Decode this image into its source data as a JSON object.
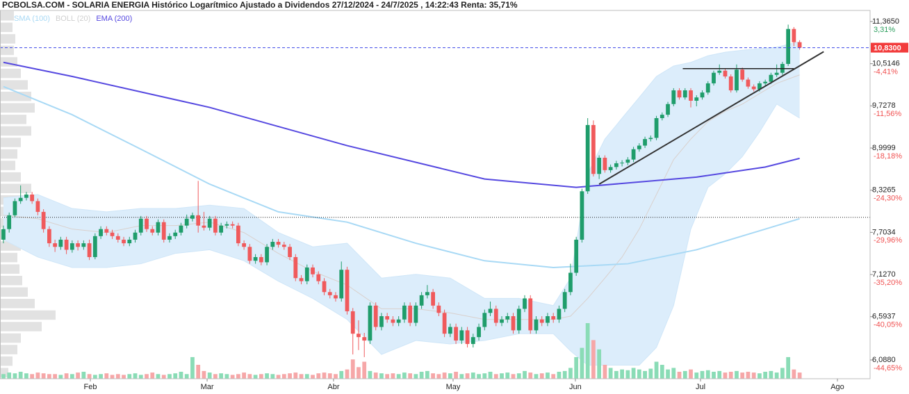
{
  "chart_data": {
    "type": "candlestick",
    "title": "PCBOLSA.COM - SOLARIA ENERGIA Histórico Logarítmico Ajustado a Dividendos 27/12/2024 - 24/7/2025 , 14:22:43 Renta: 35,71%",
    "open": [
      7.6,
      7.75,
      7.95,
      8.16,
      8.21,
      8.26,
      8.16,
      8.0,
      7.75,
      7.55,
      7.5,
      7.6,
      7.46,
      7.55,
      7.5,
      7.55,
      7.36,
      7.65,
      7.75,
      7.7,
      7.65,
      7.6,
      7.55,
      7.6,
      7.7,
      7.9,
      7.75,
      7.7,
      7.85,
      7.6,
      7.65,
      7.7,
      7.8,
      7.9,
      7.95,
      7.8,
      7.77,
      7.9,
      7.7,
      7.8,
      7.82,
      7.8,
      7.55,
      7.5,
      7.31,
      7.36,
      7.29,
      7.5,
      7.57,
      7.53,
      7.5,
      7.36,
      7.08,
      7.04,
      7.22,
      7.13,
      7.04,
      6.9,
      6.86,
      6.82,
      7.19,
      6.66,
      6.39,
      6.35,
      6.31,
      6.73,
      6.47,
      6.6,
      6.56,
      6.52,
      6.56,
      6.73,
      6.52,
      6.73,
      6.86,
      6.9,
      6.73,
      6.64,
      6.39,
      6.47,
      6.31,
      6.43,
      6.27,
      6.35,
      6.47,
      6.64,
      6.69,
      6.52,
      6.56,
      6.6,
      6.43,
      6.69,
      6.82,
      6.43,
      6.56,
      6.52,
      6.6,
      6.56,
      6.69,
      6.9,
      7.15,
      7.6,
      8.31,
      9.39,
      8.58,
      8.84,
      8.64,
      8.69,
      8.75,
      8.76,
      8.81,
      8.98,
      9.04,
      9.15,
      9.17,
      9.51,
      9.57,
      9.76,
      10.01,
      9.88,
      10.01,
      9.82,
      9.88,
      9.97,
      10.14,
      10.34,
      10.38,
      10.27,
      10.01,
      10.4,
      10.21,
      10.08,
      10.03,
      10.14,
      10.17,
      10.3,
      10.34,
      10.51,
      11.21,
      10.94
    ],
    "high": [
      7.8,
      7.99,
      8.2,
      8.4,
      8.3,
      8.3,
      8.2,
      8.04,
      7.79,
      7.6,
      7.64,
      7.64,
      7.59,
      7.59,
      7.59,
      7.6,
      7.69,
      7.79,
      7.79,
      7.74,
      7.69,
      7.64,
      7.64,
      7.74,
      7.94,
      7.94,
      7.79,
      7.89,
      7.89,
      7.69,
      7.74,
      7.84,
      7.96,
      7.99,
      8.47,
      8.0,
      7.94,
      7.94,
      7.84,
      7.86,
      7.86,
      7.84,
      7.59,
      7.54,
      7.4,
      7.4,
      7.54,
      7.61,
      7.61,
      7.57,
      7.54,
      7.4,
      7.12,
      7.26,
      7.26,
      7.17,
      7.08,
      6.94,
      6.9,
      7.3,
      7.23,
      6.7,
      6.55,
      6.4,
      6.77,
      6.77,
      6.64,
      6.64,
      6.6,
      6.6,
      6.77,
      6.77,
      6.77,
      6.9,
      6.99,
      6.94,
      6.77,
      6.68,
      6.51,
      6.51,
      6.47,
      6.47,
      6.39,
      6.51,
      6.68,
      6.78,
      6.73,
      6.6,
      6.64,
      6.64,
      6.73,
      6.86,
      6.86,
      6.6,
      6.6,
      6.64,
      6.64,
      6.73,
      6.94,
      7.27,
      7.64,
      8.35,
      9.51,
      9.47,
      8.88,
      8.88,
      8.73,
      8.79,
      8.8,
      8.85,
      9.02,
      9.08,
      9.19,
      9.21,
      9.55,
      9.61,
      9.8,
      10.05,
      10.05,
      10.05,
      10.05,
      9.92,
      10.01,
      10.18,
      10.38,
      10.5,
      10.42,
      10.31,
      10.5,
      10.44,
      10.25,
      10.12,
      10.18,
      10.21,
      10.34,
      10.5,
      10.55,
      11.3,
      11.25,
      10.98
    ],
    "low": [
      7.55,
      7.7,
      7.92,
      8.12,
      8.17,
      8.12,
      7.95,
      7.7,
      7.5,
      7.43,
      7.46,
      7.4,
      7.42,
      7.45,
      7.46,
      7.32,
      7.33,
      7.61,
      7.66,
      7.61,
      7.56,
      7.51,
      7.51,
      7.56,
      7.66,
      7.71,
      7.66,
      7.66,
      7.56,
      7.56,
      7.61,
      7.66,
      7.76,
      7.86,
      7.7,
      7.73,
      7.73,
      7.66,
      7.66,
      7.76,
      7.76,
      7.51,
      7.46,
      7.27,
      7.27,
      7.25,
      7.25,
      7.46,
      7.49,
      7.46,
      7.32,
      7.04,
      7.0,
      7.0,
      7.09,
      7.0,
      6.86,
      6.82,
      6.78,
      6.78,
      6.62,
      6.15,
      6.2,
      6.12,
      6.27,
      6.43,
      6.43,
      6.52,
      6.48,
      6.48,
      6.52,
      6.48,
      6.48,
      6.69,
      6.82,
      6.69,
      6.6,
      6.35,
      6.35,
      6.27,
      6.27,
      6.23,
      6.23,
      6.31,
      6.43,
      6.6,
      6.48,
      6.48,
      6.52,
      6.39,
      6.39,
      6.65,
      6.39,
      6.39,
      6.48,
      6.48,
      6.52,
      6.52,
      6.65,
      6.86,
      7.11,
      7.56,
      8.27,
      8.54,
      8.5,
      8.6,
      8.6,
      8.65,
      8.7,
      8.72,
      8.77,
      8.94,
      9.0,
      9.11,
      9.13,
      9.47,
      9.53,
      9.72,
      9.84,
      9.84,
      9.7,
      9.72,
      9.84,
      9.93,
      10.1,
      10.3,
      10.23,
      9.97,
      9.97,
      10.17,
      10.04,
      9.99,
      9.99,
      10.1,
      10.13,
      10.26,
      10.3,
      10.47,
      10.86,
      10.79
    ],
    "close": [
      7.75,
      7.95,
      8.16,
      8.21,
      8.26,
      8.16,
      8.0,
      7.75,
      7.55,
      7.5,
      7.6,
      7.46,
      7.55,
      7.5,
      7.55,
      7.36,
      7.65,
      7.75,
      7.7,
      7.65,
      7.6,
      7.55,
      7.6,
      7.7,
      7.9,
      7.75,
      7.7,
      7.85,
      7.6,
      7.65,
      7.7,
      7.8,
      7.9,
      7.95,
      7.8,
      7.77,
      7.9,
      7.7,
      7.8,
      7.82,
      7.8,
      7.55,
      7.5,
      7.31,
      7.36,
      7.29,
      7.5,
      7.57,
      7.53,
      7.5,
      7.36,
      7.08,
      7.04,
      7.22,
      7.13,
      7.04,
      6.9,
      6.86,
      6.82,
      7.19,
      6.66,
      6.39,
      6.35,
      6.31,
      6.73,
      6.47,
      6.6,
      6.56,
      6.52,
      6.56,
      6.73,
      6.52,
      6.73,
      6.86,
      6.9,
      6.73,
      6.64,
      6.39,
      6.47,
      6.31,
      6.43,
      6.27,
      6.35,
      6.47,
      6.64,
      6.69,
      6.52,
      6.56,
      6.6,
      6.43,
      6.69,
      6.82,
      6.43,
      6.56,
      6.52,
      6.6,
      6.56,
      6.69,
      6.9,
      7.15,
      7.6,
      8.31,
      9.39,
      8.58,
      8.84,
      8.64,
      8.69,
      8.75,
      8.76,
      8.81,
      8.98,
      9.04,
      9.15,
      9.17,
      9.51,
      9.57,
      9.76,
      10.01,
      9.88,
      10.01,
      9.82,
      9.88,
      9.97,
      10.14,
      10.34,
      10.38,
      10.27,
      10.01,
      10.4,
      10.21,
      10.08,
      10.03,
      10.14,
      10.17,
      10.3,
      10.34,
      10.51,
      11.21,
      10.94,
      10.83
    ],
    "volume": [
      6,
      8,
      7,
      9,
      7,
      6,
      8,
      7,
      6,
      6,
      5,
      7,
      6,
      8,
      9,
      6,
      5,
      6,
      7,
      5,
      6,
      5,
      6,
      7,
      5,
      6,
      8,
      6,
      5,
      6,
      7,
      9,
      6,
      28,
      18,
      10,
      8,
      6,
      7,
      6,
      5,
      6,
      8,
      6,
      5,
      6,
      7,
      6,
      5,
      6,
      7,
      8,
      6,
      6,
      5,
      7,
      8,
      7,
      6,
      10,
      12,
      25,
      15,
      22,
      10,
      8,
      7,
      6,
      7,
      6,
      8,
      7,
      6,
      9,
      10,
      7,
      6,
      8,
      7,
      9,
      6,
      7,
      8,
      6,
      7,
      9,
      6,
      7,
      8,
      6,
      7,
      10,
      8,
      6,
      7,
      8,
      6,
      9,
      10,
      14,
      28,
      40,
      72,
      50,
      38,
      18,
      14,
      10,
      12,
      11,
      14,
      12,
      10,
      13,
      22,
      18,
      12,
      14,
      9,
      10,
      12,
      8,
      10,
      11,
      9,
      10,
      8,
      9,
      10,
      8,
      9,
      8,
      7,
      9,
      10,
      8,
      14,
      28,
      12,
      8
    ],
    "up_color": "#1f9d6b",
    "down_color": "#f05a5c",
    "volume_up_color": "#8adcb6",
    "volume_down_color": "#f6a7a8",
    "volume_profile": [
      20,
      18,
      22,
      20,
      25,
      30,
      40,
      45,
      50,
      38,
      45,
      30,
      25,
      22,
      30,
      45,
      55,
      60,
      40,
      35,
      30,
      25,
      28,
      32,
      40,
      50,
      80,
      60,
      30,
      25,
      18,
      12
    ],
    "volume_profile_color": "#e2e2e2",
    "indicators": [
      {
        "name": "SMA (100)",
        "color": "#a8d9f5",
        "x": [
          0,
          12,
          24,
          36,
          48,
          60,
          72,
          84,
          96,
          109,
          121,
          133,
          139
        ],
        "values": [
          10.08,
          9.57,
          8.98,
          8.42,
          8.0,
          7.85,
          7.55,
          7.31,
          7.22,
          7.27,
          7.46,
          7.75,
          7.9
        ]
      },
      {
        "name": "EMA (200)",
        "color": "#5548e0",
        "x": [
          0,
          12,
          36,
          60,
          84,
          100,
          121,
          133,
          139
        ],
        "values": [
          10.54,
          10.27,
          9.7,
          9.04,
          8.5,
          8.37,
          8.53,
          8.69,
          8.83
        ]
      }
    ],
    "bollinger": {
      "name": "BOLL (20)",
      "color": "#dcedfb",
      "line_color": "#d9d0cc",
      "legend_color": "#cfcfcf",
      "x": [
        0,
        6,
        12,
        18,
        24,
        30,
        36,
        42,
        48,
        54,
        60,
        66,
        72,
        78,
        84,
        90,
        96,
        99,
        102,
        105,
        108,
        111,
        114,
        117,
        120,
        123,
        126,
        129,
        132,
        135,
        139
      ],
      "upper": [
        8.21,
        8.26,
        8.05,
        8.0,
        8.05,
        8.05,
        8.1,
        8.05,
        7.7,
        7.5,
        7.55,
        7.08,
        7.13,
        7.08,
        6.82,
        6.82,
        6.73,
        7.08,
        8.58,
        9.15,
        9.51,
        9.88,
        10.27,
        10.47,
        10.54,
        10.67,
        10.74,
        10.78,
        10.81,
        10.84,
        10.95
      ],
      "middle": [
        7.95,
        7.9,
        7.75,
        7.7,
        7.8,
        7.8,
        7.85,
        7.7,
        7.41,
        7.17,
        6.99,
        6.69,
        6.69,
        6.64,
        6.56,
        6.56,
        6.56,
        6.6,
        6.82,
        7.08,
        7.36,
        7.75,
        8.26,
        8.81,
        9.15,
        9.45,
        9.63,
        9.76,
        9.95,
        10.14,
        10.3
      ],
      "lower": [
        7.6,
        7.36,
        7.22,
        7.22,
        7.27,
        7.41,
        7.46,
        7.31,
        7.04,
        6.82,
        6.56,
        6.15,
        6.31,
        6.27,
        6.31,
        6.39,
        6.39,
        6.19,
        6.03,
        6.03,
        6.03,
        6.03,
        6.23,
        6.73,
        7.75,
        8.37,
        8.58,
        8.86,
        9.27,
        9.76,
        9.51
      ]
    },
    "log_scale": true,
    "xlim": [
      -0.6,
      151.3
    ],
    "xticks": [
      {
        "value": 15.17,
        "label": "Feb"
      },
      {
        "value": 35.56,
        "label": "Mar"
      },
      {
        "value": 57.63,
        "label": "Abr"
      },
      {
        "value": 78.5,
        "label": "May"
      },
      {
        "value": 99.85,
        "label": "Jun"
      },
      {
        "value": 121.7,
        "label": "Jul"
      },
      {
        "value": 145.6,
        "label": "Ago"
      }
    ],
    "ylim": [
      5.881,
      11.6
    ],
    "yticks": [
      {
        "value": 11.365,
        "label": "11,3650"
      },
      {
        "value": 10.5146,
        "label": "10,5146"
      },
      {
        "value": 9.7278,
        "label": "9,7278"
      },
      {
        "value": 8.9999,
        "label": "8,9999"
      },
      {
        "value": 8.3265,
        "label": "8,3265"
      },
      {
        "value": 7.7034,
        "label": "7,7034"
      },
      {
        "value": 7.127,
        "label": "7,1270"
      },
      {
        "value": 6.5937,
        "label": "6,5937"
      },
      {
        "value": 6.088,
        "label": "6,0880"
      }
    ],
    "y2lim": [
      -46.54,
      5.45
    ],
    "y2ticks": [
      {
        "value": 3.31,
        "label": "3,31%"
      },
      {
        "value": -4.41,
        "label": "-4,41%"
      },
      {
        "value": -11.56,
        "label": "-11,56%"
      },
      {
        "value": -18.18,
        "label": "-18,18%"
      },
      {
        "value": -24.3,
        "label": "-24,30%"
      },
      {
        "value": -29.96,
        "label": "-29,96%"
      },
      {
        "value": -35.2,
        "label": "-35,20%"
      },
      {
        "value": -40.05,
        "label": "-40,05%"
      },
      {
        "value": -44.65,
        "label": "-44,65%"
      }
    ],
    "y2_up_color": "#2a9d5c",
    "y2_down_color": "#f05050",
    "last_price": {
      "value": 10.83,
      "label": "10,8300",
      "color": "#3b46e8",
      "tag_color": "#f23b3b"
    },
    "reference_line": 7.92,
    "trendline": {
      "x": [
        104,
        143.2
      ],
      "values": [
        8.42,
        10.75
      ]
    },
    "resistance": {
      "x": [
        118.6,
        138
      ],
      "value": 10.42
    }
  }
}
